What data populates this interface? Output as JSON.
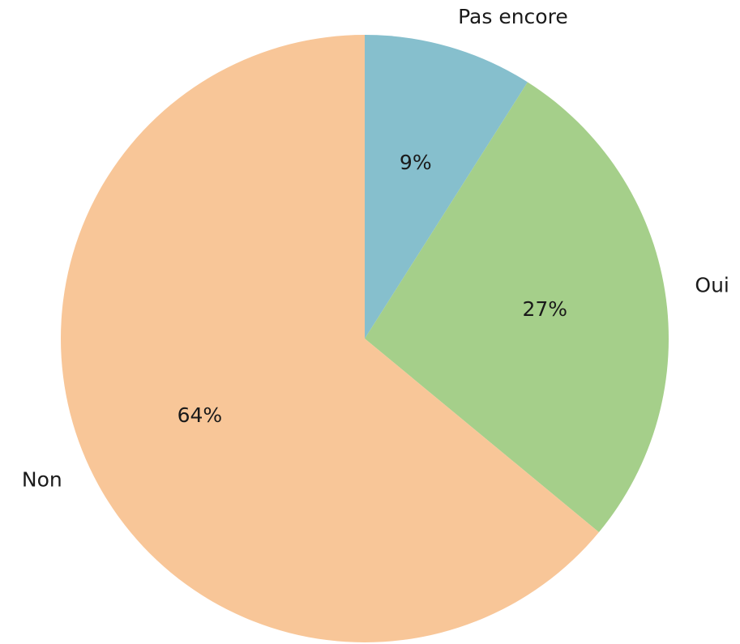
{
  "chart_data": {
    "type": "pie",
    "categories": [
      "Pas encore",
      "Oui",
      "Non"
    ],
    "values": [
      9,
      27,
      64
    ],
    "value_labels": [
      "9%",
      "27%",
      "64%"
    ],
    "colors": [
      "#86bfcd",
      "#a5cf8a",
      "#f8c698"
    ]
  }
}
